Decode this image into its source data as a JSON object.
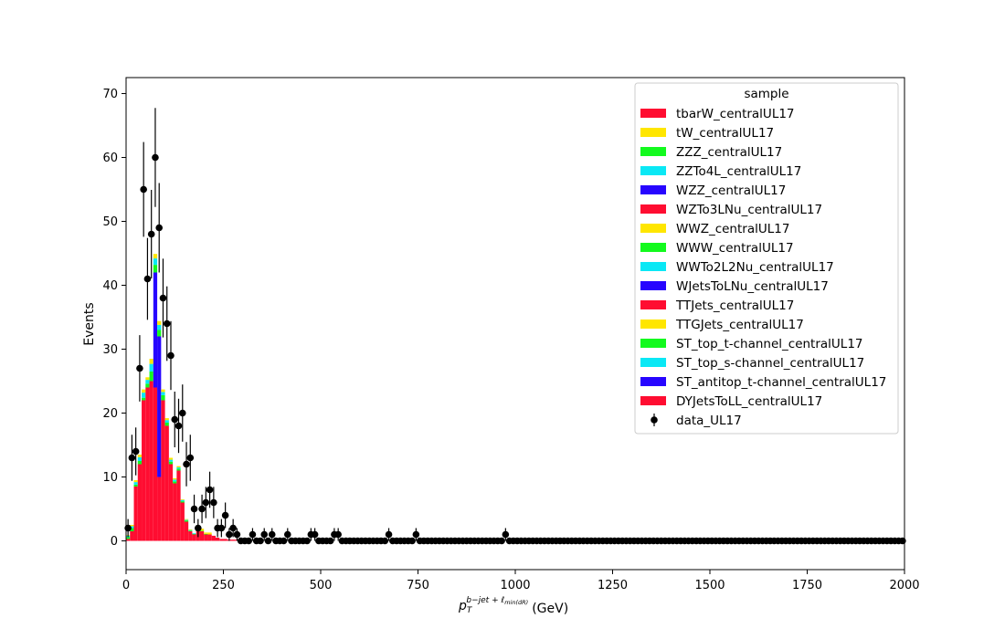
{
  "chart_data": {
    "type": "bar",
    "stacked": true,
    "title": "",
    "xlabel": "p",
    "xlabel_sub": "T",
    "xlabel_sup": "b−jet + ℓ",
    "xlabel_sup_sub": "min(dR)",
    "xlabel_unit": "(GeV)",
    "ylabel": "Events",
    "xlim": [
      0,
      2000
    ],
    "ylim": [
      -4.5,
      72.5
    ],
    "xticks": [
      0,
      250,
      500,
      750,
      1000,
      1250,
      1500,
      1750,
      2000
    ],
    "yticks": [
      0,
      10,
      20,
      30,
      40,
      50,
      60,
      70
    ],
    "bin_width": 10,
    "grid": false,
    "legend": {
      "title": "sample",
      "placement": "top-right",
      "entries": [
        {
          "name": "tbarW_centralUL17",
          "color": "#ff0d31"
        },
        {
          "name": "tW_centralUL17",
          "color": "#ffe600"
        },
        {
          "name": "ZZZ_centralUL17",
          "color": "#13fa1e"
        },
        {
          "name": "ZZTo4L_centralUL17",
          "color": "#0ae8f5"
        },
        {
          "name": "WZZ_centralUL17",
          "color": "#2705ff"
        },
        {
          "name": "WZTo3LNu_centralUL17",
          "color": "#ff0d31"
        },
        {
          "name": "WWZ_centralUL17",
          "color": "#ffe600"
        },
        {
          "name": "WWW_centralUL17",
          "color": "#13fa1e"
        },
        {
          "name": "WWTo2L2Nu_centralUL17",
          "color": "#0ae8f5"
        },
        {
          "name": "WJetsToLNu_centralUL17",
          "color": "#2705ff"
        },
        {
          "name": "TTJets_centralUL17",
          "color": "#ff0d31"
        },
        {
          "name": "TTGJets_centralUL17",
          "color": "#ffe600"
        },
        {
          "name": "ST_top_t-channel_centralUL17",
          "color": "#13fa1e"
        },
        {
          "name": "ST_top_s-channel_centralUL17",
          "color": "#0ae8f5"
        },
        {
          "name": "ST_antitop_t-channel_centralUL17",
          "color": "#2705ff"
        },
        {
          "name": "DYJetsToLL_centralUL17",
          "color": "#ff0d31"
        },
        {
          "name": "data_UL17",
          "color": "#000000",
          "marker": "errorbar"
        }
      ]
    },
    "mc_stack": {
      "bin_centers": [
        5,
        15,
        25,
        35,
        45,
        55,
        65,
        75,
        85,
        95,
        105,
        115,
        125,
        135,
        145,
        155,
        165,
        175,
        185,
        195,
        205,
        215,
        225,
        235,
        245,
        255,
        265,
        275,
        285,
        295
      ],
      "components": [
        {
          "name": "DYJetsToLL_centralUL17",
          "color": "#ff0d31",
          "values": [
            0.3,
            1.5,
            8.5,
            12,
            22,
            24,
            25,
            24,
            10,
            22,
            18,
            12,
            9,
            11,
            6,
            3,
            1.5,
            1,
            1.5,
            1.5,
            1,
            1,
            0.8,
            0.5,
            0.3,
            0.3,
            0.2,
            0.2,
            0.2,
            0.2
          ]
        },
        {
          "name": "WJetsToLNu_centralUL17",
          "color": "#2705ff",
          "values": [
            0,
            0,
            0,
            0,
            0,
            0,
            0,
            18,
            22,
            0,
            0,
            0,
            0,
            0,
            0,
            0,
            0,
            0,
            0,
            0,
            0,
            0,
            0,
            0,
            0,
            0,
            0,
            0,
            0,
            0
          ]
        },
        {
          "name": "ST_top_t-channel_centralUL17",
          "color": "#13fa1e",
          "values": [
            0.3,
            0.5,
            0.3,
            0.5,
            0.4,
            0.6,
            1.5,
            1.2,
            1.0,
            0.8,
            0.5,
            0.4,
            0.3,
            0.3,
            0.2,
            0.2,
            0.1,
            0.1,
            0.1,
            0.1,
            0.1,
            0,
            0,
            0,
            0,
            0,
            0,
            0,
            0,
            0
          ]
        },
        {
          "name": "ST_top_s-channel_centralUL17",
          "color": "#0ae8f5",
          "values": [
            0.2,
            0.3,
            0.4,
            0.6,
            0.8,
            0.6,
            1.2,
            1.0,
            0.8,
            0.5,
            0.4,
            0.3,
            0.3,
            0.2,
            0.2,
            0.1,
            0.1,
            0.1,
            0,
            0,
            0,
            0,
            0,
            0,
            0,
            0,
            0,
            0,
            0,
            0
          ]
        },
        {
          "name": "TTGJets_centralUL17",
          "color": "#ffe600",
          "values": [
            0.1,
            0.2,
            0.3,
            0.4,
            0.5,
            0.4,
            0.8,
            0.7,
            0.6,
            0.4,
            0.3,
            0.3,
            0.2,
            0.2,
            0.1,
            0.1,
            0.1,
            0,
            0.3,
            0.3,
            0.2,
            0.3,
            0,
            0,
            0,
            0,
            0,
            0,
            0,
            0
          ]
        }
      ]
    },
    "data": {
      "name": "data_UL17",
      "x": [
        5,
        15,
        25,
        35,
        45,
        55,
        65,
        75,
        85,
        95,
        105,
        115,
        125,
        135,
        145,
        155,
        165,
        175,
        185,
        195,
        205,
        215,
        225,
        235,
        245,
        255,
        265,
        275,
        285,
        295,
        305,
        315,
        325,
        335,
        345,
        355,
        365,
        375,
        385,
        395,
        405,
        415,
        425,
        435,
        445,
        455,
        465,
        475,
        485,
        495,
        505,
        515,
        525,
        535,
        545,
        555,
        565,
        575,
        585,
        595,
        605,
        615,
        625,
        635,
        645,
        655,
        665,
        675,
        685,
        695,
        705,
        715,
        725,
        735,
        745,
        755,
        765,
        775,
        785,
        795,
        805,
        815,
        825,
        835,
        845,
        855,
        865,
        875,
        885,
        895,
        905,
        915,
        925,
        935,
        945,
        955,
        965,
        975,
        985,
        995,
        1005,
        1015,
        1025,
        1035,
        1045,
        1055,
        1065,
        1075,
        1085,
        1095,
        1105,
        1115,
        1125,
        1135,
        1145,
        1155,
        1165,
        1175,
        1185,
        1195,
        1205,
        1215,
        1225,
        1235,
        1245,
        1255,
        1265,
        1275,
        1285,
        1295,
        1305,
        1315,
        1325,
        1335,
        1345,
        1355,
        1365,
        1375,
        1385,
        1395,
        1405,
        1415,
        1425,
        1435,
        1445,
        1455,
        1465,
        1475,
        1485,
        1495,
        1505,
        1515,
        1525,
        1535,
        1545,
        1555,
        1565,
        1575,
        1585,
        1595,
        1605,
        1615,
        1625,
        1635,
        1645,
        1655,
        1665,
        1675,
        1685,
        1695,
        1705,
        1715,
        1725,
        1735,
        1745,
        1755,
        1765,
        1775,
        1785,
        1795,
        1805,
        1815,
        1825,
        1835,
        1845,
        1855,
        1865,
        1875,
        1885,
        1895,
        1905,
        1915,
        1925,
        1935,
        1945,
        1955,
        1965,
        1975,
        1985,
        1995
      ],
      "y": [
        2,
        13,
        14,
        27,
        55,
        41,
        48,
        60,
        49,
        38,
        34,
        29,
        19,
        18,
        20,
        12,
        13,
        5,
        2,
        5,
        6,
        8,
        6,
        2,
        2,
        4,
        1,
        2,
        1,
        0,
        0,
        0,
        1,
        0,
        0,
        1,
        0,
        1,
        0,
        0,
        0,
        1,
        0,
        0,
        0,
        0,
        0,
        1,
        1,
        0,
        0,
        0,
        0,
        1,
        1,
        0,
        0,
        0,
        0,
        0,
        0,
        0,
        0,
        0,
        0,
        0,
        0,
        1,
        0,
        0,
        0,
        0,
        0,
        0,
        1,
        0,
        0,
        0,
        0,
        0,
        0,
        0,
        0,
        0,
        0,
        0,
        0,
        0,
        0,
        0,
        0,
        0,
        0,
        0,
        0,
        0,
        0,
        1,
        0,
        0,
        0,
        0,
        0,
        0,
        0,
        0,
        0,
        0,
        0,
        0,
        0,
        0,
        0,
        0,
        0,
        0,
        0,
        0,
        0,
        0,
        0,
        0,
        0,
        0,
        0,
        0,
        0,
        0,
        0,
        0,
        0,
        0,
        0,
        0,
        0,
        0,
        0,
        0,
        0,
        0,
        0,
        0,
        0,
        0,
        0,
        0,
        0,
        0,
        0,
        0,
        0,
        0,
        0,
        0,
        0,
        0,
        0,
        0,
        0,
        0,
        0,
        0,
        0,
        0,
        0,
        0,
        0,
        0,
        0,
        0,
        0,
        0,
        0,
        0,
        0,
        0,
        0,
        0,
        0,
        0,
        0,
        0,
        0,
        0,
        0,
        0,
        0,
        0,
        0,
        0,
        0,
        0,
        0,
        0,
        0,
        0,
        0,
        0,
        0,
        0
      ]
    }
  }
}
